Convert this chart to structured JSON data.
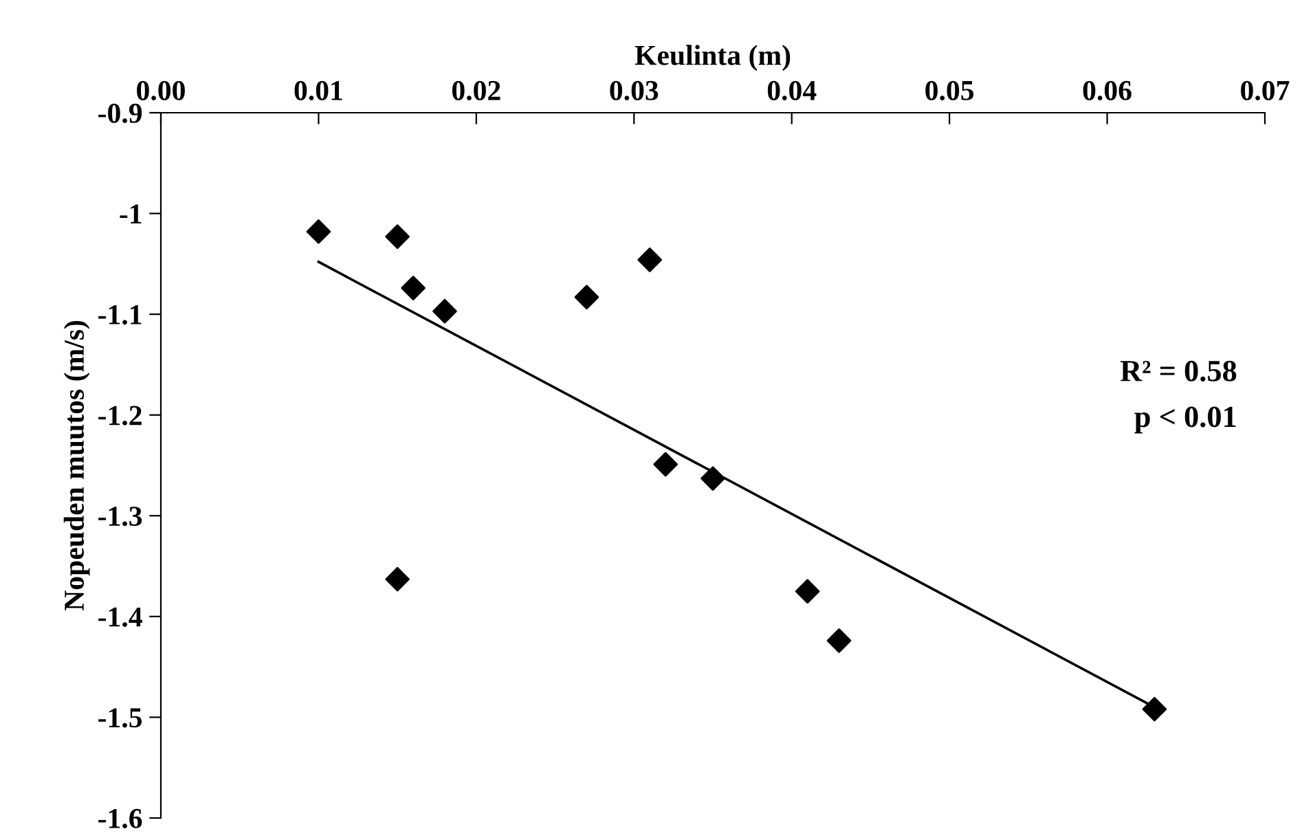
{
  "chart_data": {
    "type": "scatter",
    "xlabel": "Keulinta (m)",
    "ylabel": "Nopeuden muutos (m/s)",
    "xlim": [
      0,
      0.07
    ],
    "xticks": [
      {
        "value": 0,
        "label": "0.00"
      },
      {
        "value": 0.01,
        "label": "0.01"
      },
      {
        "value": 0.02,
        "label": "0.02"
      },
      {
        "value": 0.03,
        "label": "0.03"
      },
      {
        "value": 0.04,
        "label": "0.04"
      },
      {
        "value": 0.05,
        "label": "0.05"
      },
      {
        "value": 0.06,
        "label": "0.06"
      },
      {
        "value": 0.07,
        "label": "0.07"
      }
    ],
    "ylim": [
      -1.6,
      -0.9
    ],
    "yticks": [
      -0.9,
      {
        "value": -1,
        "label": "-1"
      },
      -1.1,
      -1.2,
      -1.3,
      -1.4,
      -1.5,
      -1.6
    ],
    "grid": false,
    "legend": false,
    "series": [
      {
        "marker": "diamond",
        "color": "#000000",
        "x": [
          0.01,
          0.015,
          0.016,
          0.018,
          0.027,
          0.031,
          0.032,
          0.035,
          0.015,
          0.041,
          0.043,
          0.063
        ],
        "values": [
          -1.018,
          -1.023,
          -1.074,
          -1.097,
          -1.083,
          -1.046,
          -1.249,
          -1.263,
          -1.363,
          -1.375,
          -1.424,
          -1.492
        ]
      },
      {
        "type": "line",
        "marker": "none",
        "color": "#000000",
        "x": [
          0.01,
          0.063
        ],
        "values": [
          -1.048,
          -1.49
        ]
      }
    ],
    "annotations": [
      "R² = 0.58",
      "p < 0.01"
    ]
  }
}
